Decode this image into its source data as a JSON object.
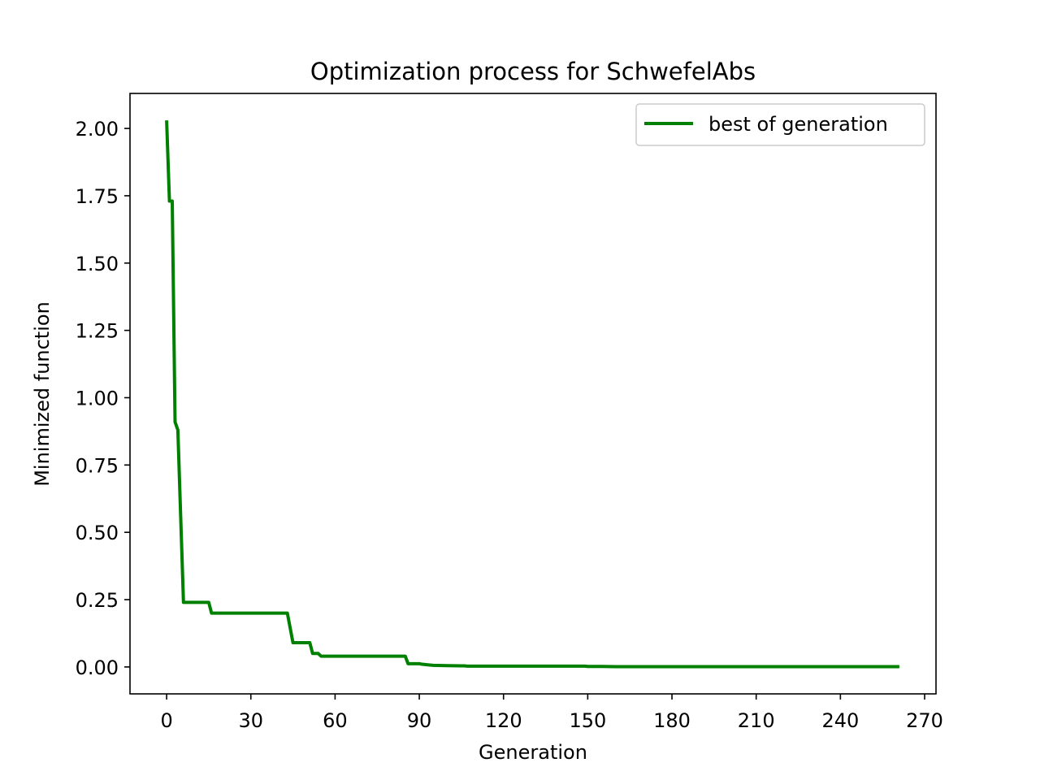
{
  "chart_data": {
    "type": "line",
    "title": "Optimization process for SchwefelAbs",
    "xlabel": "Generation",
    "ylabel": "Minimized function",
    "xlim": [
      -13.05,
      274.05
    ],
    "ylim": [
      -0.1,
      2.13
    ],
    "xticks": [
      0,
      30,
      60,
      90,
      120,
      150,
      180,
      210,
      240,
      270
    ],
    "xtick_labels": [
      "0",
      "30",
      "60",
      "90",
      "120",
      "150",
      "180",
      "210",
      "240",
      "270"
    ],
    "yticks": [
      0.0,
      0.25,
      0.5,
      0.75,
      1.0,
      1.25,
      1.5,
      1.75,
      2.0
    ],
    "ytick_labels": [
      "0.00",
      "0.25",
      "0.50",
      "0.75",
      "1.00",
      "1.25",
      "1.50",
      "1.75",
      "2.00"
    ],
    "grid": false,
    "legend_position": "top-right",
    "series": [
      {
        "name": "best of generation",
        "color": "#008000",
        "x": [
          0,
          1,
          2,
          3,
          4,
          6,
          10,
          15,
          16,
          17,
          20,
          25,
          30,
          35,
          40,
          43,
          45,
          47,
          50,
          51,
          52,
          54,
          55,
          60,
          70,
          80,
          85,
          86,
          90,
          91,
          93,
          95,
          100,
          105,
          106,
          107,
          110,
          120,
          130,
          140,
          149,
          150,
          155,
          160,
          170,
          180,
          190,
          200,
          210,
          220,
          230,
          240,
          250,
          261
        ],
        "y": [
          2.03,
          1.73,
          1.73,
          0.91,
          0.88,
          0.24,
          0.24,
          0.24,
          0.2,
          0.2,
          0.2,
          0.2,
          0.2,
          0.2,
          0.2,
          0.2,
          0.09,
          0.09,
          0.09,
          0.09,
          0.05,
          0.05,
          0.04,
          0.04,
          0.04,
          0.04,
          0.04,
          0.012,
          0.012,
          0.01,
          0.008,
          0.006,
          0.005,
          0.004,
          0.004,
          0.003,
          0.003,
          0.003,
          0.003,
          0.003,
          0.003,
          0.002,
          0.002,
          0.001,
          0.001,
          0.001,
          0.001,
          0.001,
          0.001,
          0.001,
          0.001,
          0.001,
          0.001,
          0.001
        ]
      }
    ]
  }
}
